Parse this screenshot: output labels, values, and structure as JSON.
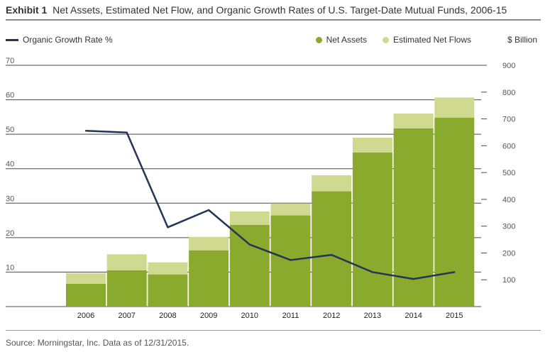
{
  "header": {
    "exhibit": "Exhibit 1",
    "title": "Net Assets, Estimated Net Flow, and Organic Growth Rates of U.S. Target-Date Mutual Funds, 2006-15"
  },
  "legend": {
    "line_label": "Organic Growth Rate %",
    "net_assets_label": "Net Assets",
    "net_flows_label": "Estimated Net Flows",
    "right_unit": "$ Billion"
  },
  "footer": {
    "source": "Source: Morningstar, Inc. Data as of 12/31/2015."
  },
  "colors": {
    "net_assets": "#8aaa2e",
    "net_flows": "#cfd98f",
    "line": "#223559",
    "grid": "#4a4a4a"
  },
  "chart_data": {
    "type": "bar",
    "categories": [
      "2006",
      "2007",
      "2008",
      "2009",
      "2010",
      "2011",
      "2012",
      "2013",
      "2014",
      "2015"
    ],
    "series": [
      {
        "name": "Net Assets",
        "axis": "right",
        "stacked": true,
        "values": [
          85,
          135,
          120,
          210,
          305,
          340,
          430,
          575,
          665,
          705
        ]
      },
      {
        "name": "Estimated Net Flows",
        "axis": "right",
        "stacked": true,
        "values": [
          40,
          60,
          45,
          50,
          50,
          45,
          60,
          55,
          55,
          75
        ]
      },
      {
        "name": "Organic Growth Rate %",
        "type": "line",
        "axis": "left",
        "values": [
          51,
          50.5,
          23,
          28,
          18,
          13.5,
          15,
          10,
          8,
          10
        ]
      }
    ],
    "y_left": {
      "ticks": [
        10,
        20,
        30,
        40,
        50,
        60,
        70
      ],
      "range": [
        0,
        70
      ]
    },
    "y_right": {
      "ticks": [
        100,
        200,
        300,
        400,
        500,
        600,
        700,
        800,
        900
      ],
      "range": [
        0,
        900
      ]
    },
    "legend_placement": "top"
  }
}
